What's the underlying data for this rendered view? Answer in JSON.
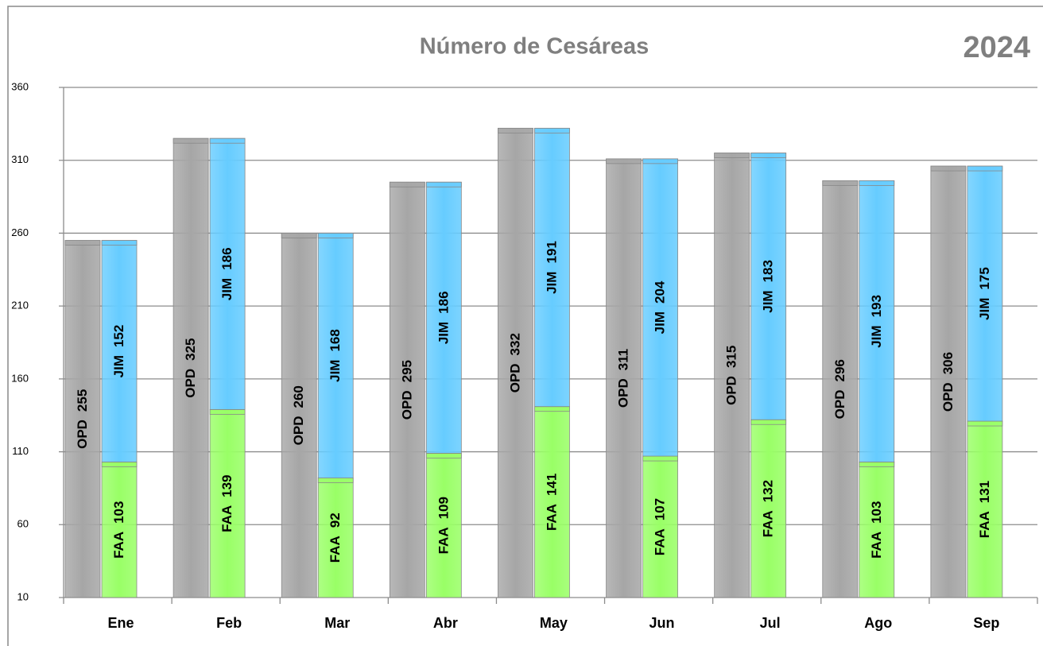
{
  "chart_data": {
    "type": "bar",
    "title": "Número de Cesáreas",
    "annotation": "2024",
    "categories": [
      "Ene",
      "Feb",
      "Mar",
      "Abr",
      "May",
      "Jun",
      "Jul",
      "Ago",
      "Sep"
    ],
    "series": [
      {
        "name": "OPD",
        "color": "#a6a6a6",
        "values": [
          255,
          325,
          260,
          295,
          332,
          311,
          315,
          296,
          306
        ]
      },
      {
        "name": "FAA",
        "color": "#99ff66",
        "values": [
          103,
          139,
          92,
          109,
          141,
          107,
          132,
          103,
          131
        ]
      },
      {
        "name": "JIM",
        "color": "#66ccff",
        "values": [
          152,
          186,
          168,
          186,
          191,
          204,
          183,
          193,
          175
        ]
      }
    ],
    "ylim": [
      10,
      360
    ],
    "yticks": [
      10,
      60,
      110,
      160,
      210,
      260,
      310,
      360
    ],
    "grid": true
  }
}
